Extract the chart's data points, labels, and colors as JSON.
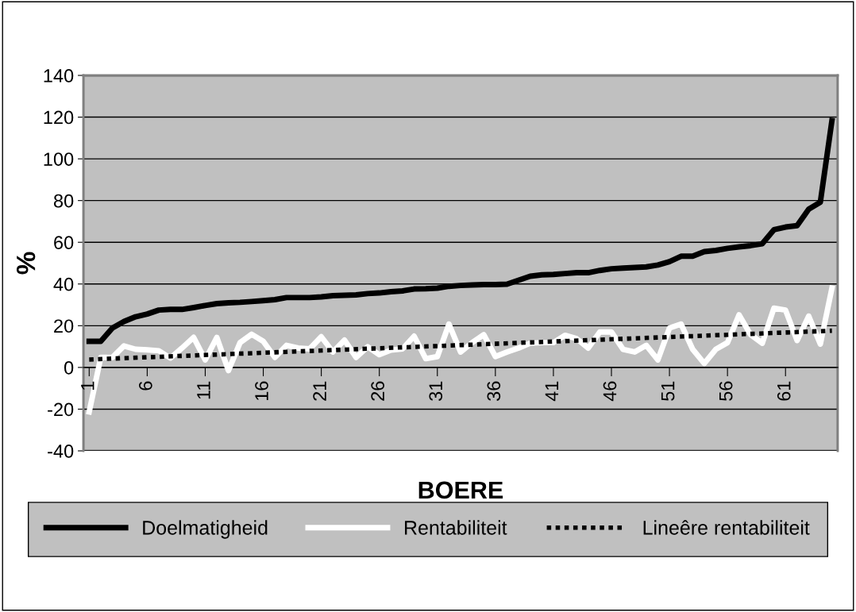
{
  "chart_data": {
    "type": "line",
    "xlabel": "BOERE",
    "ylabel": "%",
    "xlim": [
      0.5,
      65.5
    ],
    "xticks": [
      1,
      6,
      11,
      16,
      21,
      26,
      31,
      36,
      41,
      46,
      51,
      56,
      61
    ],
    "ylim": [
      -40,
      140
    ],
    "yticks": [
      -40,
      -20,
      0,
      20,
      40,
      60,
      80,
      100,
      120,
      140
    ],
    "grid": "y",
    "legend": "bottom",
    "marker": "none",
    "series": [
      {
        "name": "Doelmatigheid",
        "color": "#000000",
        "line_style": "solid",
        "x": [
          1,
          2,
          3,
          4,
          5,
          6,
          7,
          8,
          9,
          10,
          11,
          12,
          13,
          14,
          15,
          16,
          17,
          18,
          19,
          20,
          21,
          22,
          23,
          24,
          25,
          26,
          27,
          28,
          29,
          30,
          31,
          32,
          33,
          34,
          35,
          36,
          37,
          38,
          39,
          40,
          41,
          42,
          43,
          44,
          45,
          46,
          47,
          48,
          49,
          50,
          51,
          52,
          53,
          54,
          55,
          56,
          57,
          58,
          59,
          60,
          61,
          62,
          63,
          64,
          65
        ],
        "values": [
          12.5,
          12.5,
          18.9,
          22,
          24.3,
          25.6,
          27.5,
          27.8,
          27.8,
          28.7,
          29.7,
          30.6,
          31,
          31.2,
          31.6,
          32,
          32.5,
          33.5,
          33.5,
          33.5,
          33.8,
          34.4,
          34.6,
          34.8,
          35.4,
          35.7,
          36.3,
          36.7,
          37.6,
          37.7,
          38,
          38.9,
          39.3,
          39.5,
          39.7,
          39.7,
          39.9,
          41.8,
          43.7,
          44.4,
          44.6,
          45,
          45.4,
          45.4,
          46.5,
          47.3,
          47.6,
          47.9,
          48.2,
          49.1,
          50.7,
          53.3,
          53.3,
          55.5,
          56.1,
          57.1,
          57.8,
          58.4,
          59.3,
          66,
          67.3,
          68,
          75.9,
          79.2,
          118.3
        ]
      },
      {
        "name": "Rentabiliteit",
        "color": "#ffffff",
        "line_style": "solid",
        "x": [
          1,
          2,
          3,
          4,
          5,
          6,
          7,
          8,
          9,
          10,
          11,
          12,
          13,
          14,
          15,
          16,
          17,
          18,
          19,
          20,
          21,
          22,
          23,
          24,
          25,
          26,
          27,
          28,
          29,
          30,
          31,
          32,
          33,
          34,
          35,
          36,
          37,
          38,
          39,
          40,
          41,
          42,
          43,
          44,
          45,
          46,
          47,
          48,
          49,
          50,
          51,
          52,
          53,
          54,
          55,
          56,
          57,
          58,
          59,
          60,
          61,
          62,
          63,
          64,
          65
        ],
        "values": [
          -21.3,
          4.8,
          4.8,
          10.3,
          8.7,
          8.4,
          8,
          4.5,
          9.3,
          14.4,
          3.6,
          14.4,
          -1.5,
          11.9,
          15.9,
          12.5,
          4.8,
          10.6,
          9.3,
          8.9,
          14.7,
          7.4,
          13.1,
          4.8,
          9.9,
          6.1,
          8.3,
          8.9,
          15,
          4.2,
          5.2,
          20.8,
          7.4,
          11.9,
          15.7,
          5.2,
          7.4,
          9.3,
          11.6,
          11.9,
          11.9,
          15.4,
          13.8,
          9.3,
          17,
          17,
          8.7,
          7.4,
          10.6,
          3.6,
          18.9,
          20.8,
          8.7,
          1.9,
          8.7,
          11.9,
          25.2,
          15.7,
          11.6,
          28.4,
          27.5,
          12.9,
          24.6,
          11.2,
          38
        ]
      },
      {
        "name": "Lineêre rentabiliteit",
        "color": "#000000",
        "line_style": "dotted",
        "x": [
          1,
          65
        ],
        "values": [
          3.8,
          17.6
        ]
      }
    ]
  }
}
